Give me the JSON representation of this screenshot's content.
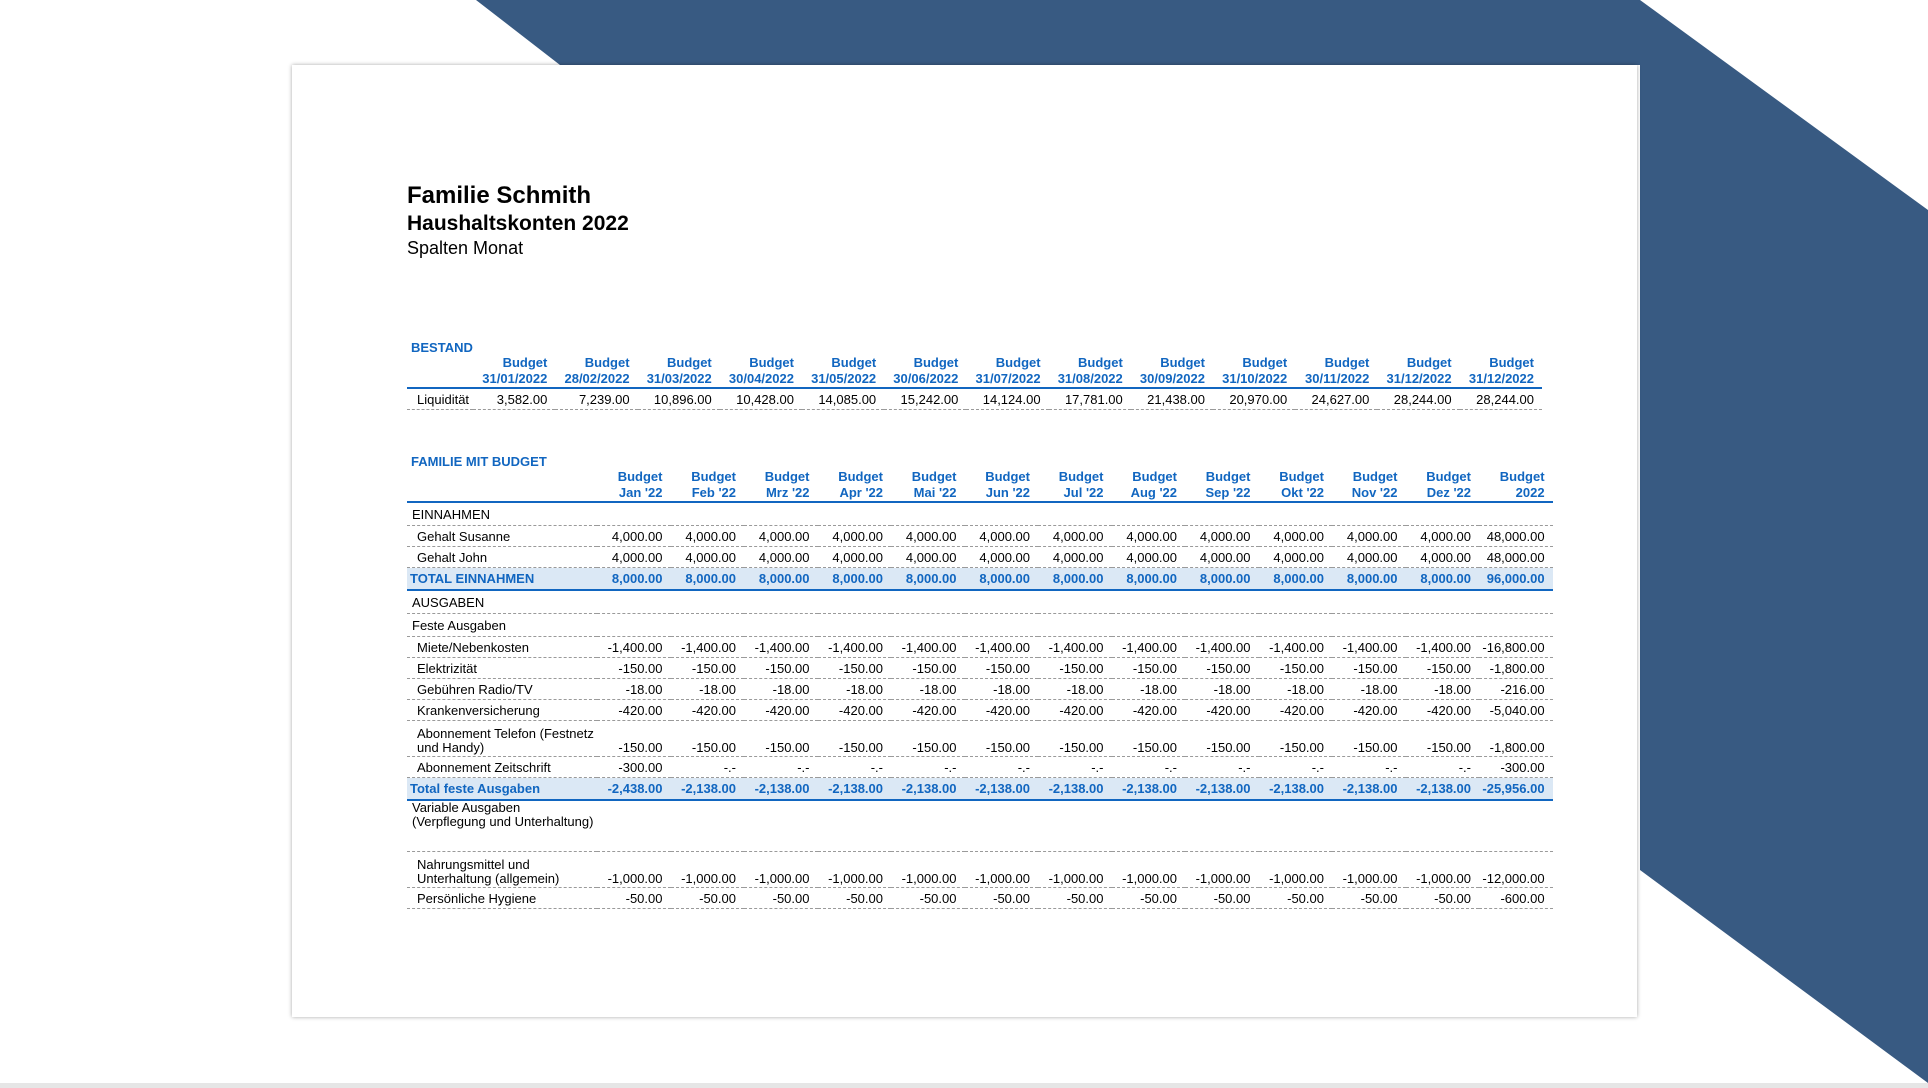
{
  "colors": {
    "accent": "#1166c0",
    "background_band": "#385a82",
    "total_row_bg": "#dbe8f5"
  },
  "header": {
    "family": "Familie Schmith",
    "report_title": "Haushaltskonten 2022",
    "subtitle": "Spalten Monat"
  },
  "bestand": {
    "title": "BESTAND",
    "columns": [
      {
        "top": "Budget",
        "bottom": "31/01/2022"
      },
      {
        "top": "Budget",
        "bottom": "28/02/2022"
      },
      {
        "top": "Budget",
        "bottom": "31/03/2022"
      },
      {
        "top": "Budget",
        "bottom": "30/04/2022"
      },
      {
        "top": "Budget",
        "bottom": "31/05/2022"
      },
      {
        "top": "Budget",
        "bottom": "30/06/2022"
      },
      {
        "top": "Budget",
        "bottom": "31/07/2022"
      },
      {
        "top": "Budget",
        "bottom": "31/08/2022"
      },
      {
        "top": "Budget",
        "bottom": "30/09/2022"
      },
      {
        "top": "Budget",
        "bottom": "31/10/2022"
      },
      {
        "top": "Budget",
        "bottom": "30/11/2022"
      },
      {
        "top": "Budget",
        "bottom": "31/12/2022"
      },
      {
        "top": "Budget",
        "bottom": "31/12/2022"
      }
    ],
    "rows": [
      {
        "label": "Liquidität",
        "values": [
          "3,582.00",
          "7,239.00",
          "10,896.00",
          "10,428.00",
          "14,085.00",
          "15,242.00",
          "14,124.00",
          "17,781.00",
          "21,438.00",
          "20,970.00",
          "24,627.00",
          "28,244.00",
          "28,244.00"
        ]
      }
    ]
  },
  "budget": {
    "title": "FAMILIE MIT BUDGET",
    "columns": [
      {
        "top": "Budget",
        "bottom": "Jan '22"
      },
      {
        "top": "Budget",
        "bottom": "Feb '22"
      },
      {
        "top": "Budget",
        "bottom": "Mrz '22"
      },
      {
        "top": "Budget",
        "bottom": "Apr '22"
      },
      {
        "top": "Budget",
        "bottom": "Mai '22"
      },
      {
        "top": "Budget",
        "bottom": "Jun '22"
      },
      {
        "top": "Budget",
        "bottom": "Jul '22"
      },
      {
        "top": "Budget",
        "bottom": "Aug '22"
      },
      {
        "top": "Budget",
        "bottom": "Sep '22"
      },
      {
        "top": "Budget",
        "bottom": "Okt '22"
      },
      {
        "top": "Budget",
        "bottom": "Nov '22"
      },
      {
        "top": "Budget",
        "bottom": "Dez '22"
      },
      {
        "top": "Budget",
        "bottom": "2022"
      }
    ],
    "rows": [
      {
        "kind": "group",
        "label": "EINNAHMEN"
      },
      {
        "kind": "item",
        "label": "Gehalt Susanne",
        "values": [
          "4,000.00",
          "4,000.00",
          "4,000.00",
          "4,000.00",
          "4,000.00",
          "4,000.00",
          "4,000.00",
          "4,000.00",
          "4,000.00",
          "4,000.00",
          "4,000.00",
          "4,000.00",
          "48,000.00"
        ]
      },
      {
        "kind": "item",
        "label": "Gehalt John",
        "values": [
          "4,000.00",
          "4,000.00",
          "4,000.00",
          "4,000.00",
          "4,000.00",
          "4,000.00",
          "4,000.00",
          "4,000.00",
          "4,000.00",
          "4,000.00",
          "4,000.00",
          "4,000.00",
          "48,000.00"
        ]
      },
      {
        "kind": "total",
        "label": "TOTAL EINNAHMEN",
        "values": [
          "8,000.00",
          "8,000.00",
          "8,000.00",
          "8,000.00",
          "8,000.00",
          "8,000.00",
          "8,000.00",
          "8,000.00",
          "8,000.00",
          "8,000.00",
          "8,000.00",
          "8,000.00",
          "96,000.00"
        ]
      },
      {
        "kind": "group",
        "label": "AUSGABEN"
      },
      {
        "kind": "group",
        "label": "Feste Ausgaben"
      },
      {
        "kind": "item",
        "label": "Miete/Nebenkosten",
        "values": [
          "-1,400.00",
          "-1,400.00",
          "-1,400.00",
          "-1,400.00",
          "-1,400.00",
          "-1,400.00",
          "-1,400.00",
          "-1,400.00",
          "-1,400.00",
          "-1,400.00",
          "-1,400.00",
          "-1,400.00",
          "-16,800.00"
        ]
      },
      {
        "kind": "item",
        "label": "Elektrizität",
        "values": [
          "-150.00",
          "-150.00",
          "-150.00",
          "-150.00",
          "-150.00",
          "-150.00",
          "-150.00",
          "-150.00",
          "-150.00",
          "-150.00",
          "-150.00",
          "-150.00",
          "-1,800.00"
        ]
      },
      {
        "kind": "item",
        "label": "Gebühren Radio/TV",
        "values": [
          "-18.00",
          "-18.00",
          "-18.00",
          "-18.00",
          "-18.00",
          "-18.00",
          "-18.00",
          "-18.00",
          "-18.00",
          "-18.00",
          "-18.00",
          "-18.00",
          "-216.00"
        ]
      },
      {
        "kind": "item",
        "label": "Krankenversicherung",
        "values": [
          "-420.00",
          "-420.00",
          "-420.00",
          "-420.00",
          "-420.00",
          "-420.00",
          "-420.00",
          "-420.00",
          "-420.00",
          "-420.00",
          "-420.00",
          "-420.00",
          "-5,040.00"
        ]
      },
      {
        "kind": "item2",
        "label": "Abonnement Telefon (Festnetz und Handy)",
        "values": [
          "-150.00",
          "-150.00",
          "-150.00",
          "-150.00",
          "-150.00",
          "-150.00",
          "-150.00",
          "-150.00",
          "-150.00",
          "-150.00",
          "-150.00",
          "-150.00",
          "-1,800.00"
        ]
      },
      {
        "kind": "item",
        "label": "Abonnement Zeitschrift",
        "values": [
          "-300.00",
          "-.-",
          "-.-",
          "-.-",
          "-.-",
          "-.-",
          "-.-",
          "-.-",
          "-.-",
          "-.-",
          "-.-",
          "-.-",
          "-300.00"
        ]
      },
      {
        "kind": "total",
        "label": "Total feste Ausgaben",
        "values": [
          "-2,438.00",
          "-2,138.00",
          "-2,138.00",
          "-2,138.00",
          "-2,138.00",
          "-2,138.00",
          "-2,138.00",
          "-2,138.00",
          "-2,138.00",
          "-2,138.00",
          "-2,138.00",
          "-2,138.00",
          "-25,956.00"
        ]
      },
      {
        "kind": "group3",
        "label": "Variable Ausgaben (Verpflegung und Unterhaltung)"
      },
      {
        "kind": "item2",
        "label": "Nahrungsmittel und Unterhaltung (allgemein)",
        "values": [
          "-1,000.00",
          "-1,000.00",
          "-1,000.00",
          "-1,000.00",
          "-1,000.00",
          "-1,000.00",
          "-1,000.00",
          "-1,000.00",
          "-1,000.00",
          "-1,000.00",
          "-1,000.00",
          "-1,000.00",
          "-12,000.00"
        ]
      },
      {
        "kind": "item",
        "label": "Persönliche Hygiene",
        "values": [
          "-50.00",
          "-50.00",
          "-50.00",
          "-50.00",
          "-50.00",
          "-50.00",
          "-50.00",
          "-50.00",
          "-50.00",
          "-50.00",
          "-50.00",
          "-50.00",
          "-600.00"
        ]
      }
    ]
  }
}
